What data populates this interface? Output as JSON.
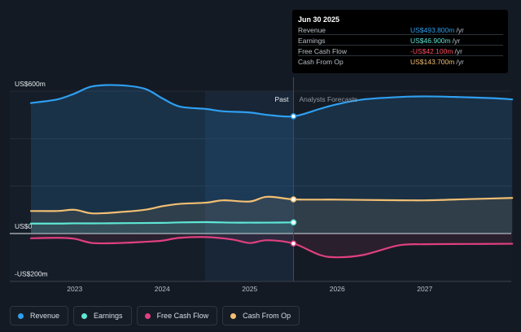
{
  "chart_data": {
    "type": "line",
    "x_label_ticks": [
      "2023",
      "2024",
      "2025",
      "2026",
      "2027"
    ],
    "y_ticks": [
      "US$600m",
      "US$0",
      "-US$200m"
    ],
    "ylim": [
      -200,
      600
    ],
    "divider_labels": {
      "past": "Past",
      "forecast": "Analysts Forecasts"
    },
    "divider_x": 2025.5,
    "colors": {
      "Revenue": "#2f9ff0",
      "Earnings": "#5ee6d6",
      "Free Cash Flow": "#e0407f",
      "Cash From Op": "#f2bf73"
    },
    "series": [
      {
        "name": "Revenue",
        "x": [
          2022.5,
          2022.8,
          2023.0,
          2023.2,
          2023.5,
          2023.8,
          2024.0,
          2024.2,
          2024.5,
          2024.7,
          2025.0,
          2025.2,
          2025.5,
          2025.8,
          2026.0,
          2026.3,
          2026.7,
          2027.0,
          2027.4,
          2027.8,
          2028.0
        ],
        "values": [
          550,
          565,
          590,
          620,
          625,
          610,
          570,
          535,
          525,
          515,
          510,
          500,
          494,
          525,
          545,
          565,
          575,
          578,
          575,
          570,
          565
        ]
      },
      {
        "name": "Earnings",
        "x": [
          2022.5,
          2022.8,
          2023.0,
          2023.3,
          2023.6,
          2024.0,
          2024.2,
          2024.5,
          2024.8,
          2025.0,
          2025.2,
          2025.5
        ],
        "values": [
          42,
          42,
          43,
          43,
          44,
          45,
          47,
          48,
          46,
          46,
          46,
          47
        ]
      },
      {
        "name": "Free Cash Flow",
        "x": [
          2022.5,
          2022.8,
          2023.0,
          2023.2,
          2023.5,
          2023.8,
          2024.0,
          2024.2,
          2024.5,
          2024.8,
          2025.0,
          2025.2,
          2025.5,
          2025.8,
          2026.0,
          2026.3,
          2026.7,
          2027.0,
          2027.5,
          2028.0
        ],
        "values": [
          -20,
          -18,
          -22,
          -40,
          -40,
          -35,
          -30,
          -18,
          -15,
          -25,
          -40,
          -28,
          -42,
          -90,
          -100,
          -90,
          -50,
          -45,
          -44,
          -43
        ]
      },
      {
        "name": "Cash From Op",
        "x": [
          2022.5,
          2022.8,
          2023.0,
          2023.2,
          2023.5,
          2023.8,
          2024.0,
          2024.2,
          2024.5,
          2024.7,
          2025.0,
          2025.2,
          2025.5,
          2025.8,
          2026.0,
          2026.5,
          2027.0,
          2027.5,
          2028.0
        ],
        "values": [
          95,
          95,
          100,
          85,
          90,
          100,
          115,
          125,
          130,
          140,
          135,
          155,
          144,
          143,
          143,
          141,
          140,
          145,
          150
        ]
      }
    ]
  },
  "tooltip": {
    "date": "Jun 30 2025",
    "unit": "/yr",
    "rows": [
      {
        "label": "Revenue",
        "value": "US$493.800m",
        "color": "#2f9ff0"
      },
      {
        "label": "Earnings",
        "value": "US$46.900m",
        "color": "#5ee6d6"
      },
      {
        "label": "Free Cash Flow",
        "value": "-US$42.100m",
        "color": "#ff4b63"
      },
      {
        "label": "Cash From Op",
        "value": "US$143.700m",
        "color": "#f2bf73"
      }
    ]
  },
  "legend": [
    {
      "label": "Revenue",
      "color": "#2f9ff0"
    },
    {
      "label": "Earnings",
      "color": "#5ee6d6"
    },
    {
      "label": "Free Cash Flow",
      "color": "#e0407f"
    },
    {
      "label": "Cash From Op",
      "color": "#f2bf73"
    }
  ]
}
